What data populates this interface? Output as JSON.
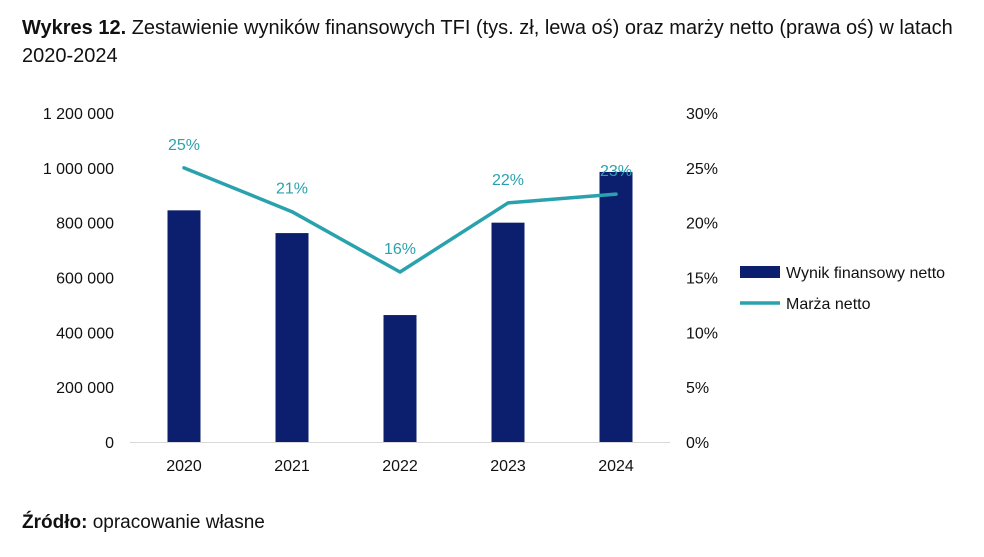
{
  "header": {
    "title_bold": "Wykres 12.",
    "title_rest": "Zestawienie wyników finansowych TFI (tys. zł, lewa oś) oraz marży netto (prawa oś) w latach 2020-2024"
  },
  "footer": {
    "source_bold": "Źródło:",
    "source_rest": "opracowanie własne"
  },
  "chart_data": {
    "type": "bar",
    "categories": [
      "2020",
      "2021",
      "2022",
      "2023",
      "2024"
    ],
    "series": [
      {
        "name": "Wynik finansowy netto",
        "type": "bar",
        "axis": "left",
        "color": "#0c1f6e",
        "values": [
          845000,
          762000,
          463000,
          800000,
          985000
        ]
      },
      {
        "name": "Marża netto",
        "type": "line",
        "axis": "right",
        "color": "#2aa2ad",
        "values": [
          25.0,
          21.0,
          15.5,
          21.8,
          22.6
        ],
        "data_labels": [
          "25%",
          "21%",
          "16%",
          "22%",
          "23%"
        ]
      }
    ],
    "y_left": {
      "ylim": [
        0,
        1200000
      ],
      "ticks": [
        0,
        200000,
        400000,
        600000,
        800000,
        1000000,
        1200000
      ],
      "tick_labels": [
        "0",
        "200 000",
        "400 000",
        "600 000",
        "800 000",
        "1 000 000",
        "1 200 000"
      ]
    },
    "y_right": {
      "ylim": [
        0,
        30
      ],
      "ticks": [
        0,
        5,
        10,
        15,
        20,
        25,
        30
      ],
      "tick_labels": [
        "0%",
        "5%",
        "10%",
        "15%",
        "20%",
        "25%",
        "30%"
      ]
    },
    "grid": false,
    "legend_position": "right"
  }
}
